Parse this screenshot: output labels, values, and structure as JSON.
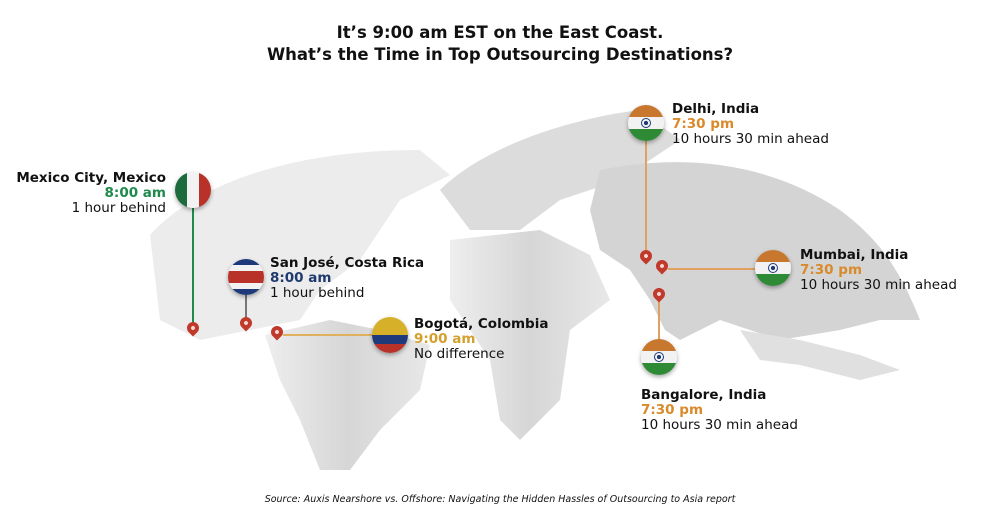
{
  "title": {
    "line1": "It’s 9:00 am EST on the East Coast.",
    "line2": "What’s the Time in Top Outsourcing Destinations?"
  },
  "colors": {
    "green": "#1e8a4c",
    "navy": "#1f3a6e",
    "gold": "#d4a02c",
    "orange": "#d98a2b",
    "pin": "#c0392b",
    "map": "#d9d9d9"
  },
  "locations": [
    {
      "city": "Mexico City, Mexico",
      "time": "8:00 am",
      "diff": "1 hour behind",
      "flag": "mexico-flag"
    },
    {
      "city": "San José, Costa Rica",
      "time": "8:00 am",
      "diff": "1 hour behind",
      "flag": "costa-rica-flag"
    },
    {
      "city": "Bogotá, Colombia",
      "time": "9:00 am",
      "diff": "No difference",
      "flag": "colombia-flag"
    },
    {
      "city": "Delhi, India",
      "time": "7:30 pm",
      "diff": "10 hours 30 min ahead",
      "flag": "india-flag"
    },
    {
      "city": "Mumbai, India",
      "time": "7:30 pm",
      "diff": "10 hours 30 min ahead",
      "flag": "india-flag"
    },
    {
      "city": "Bangalore, India",
      "time": "7:30 pm",
      "diff": "10 hours 30 min ahead",
      "flag": "india-flag"
    }
  ],
  "source": "Source: Auxis Nearshore vs. Offshore: Navigating the Hidden Hassles of Outsourcing to Asia report"
}
